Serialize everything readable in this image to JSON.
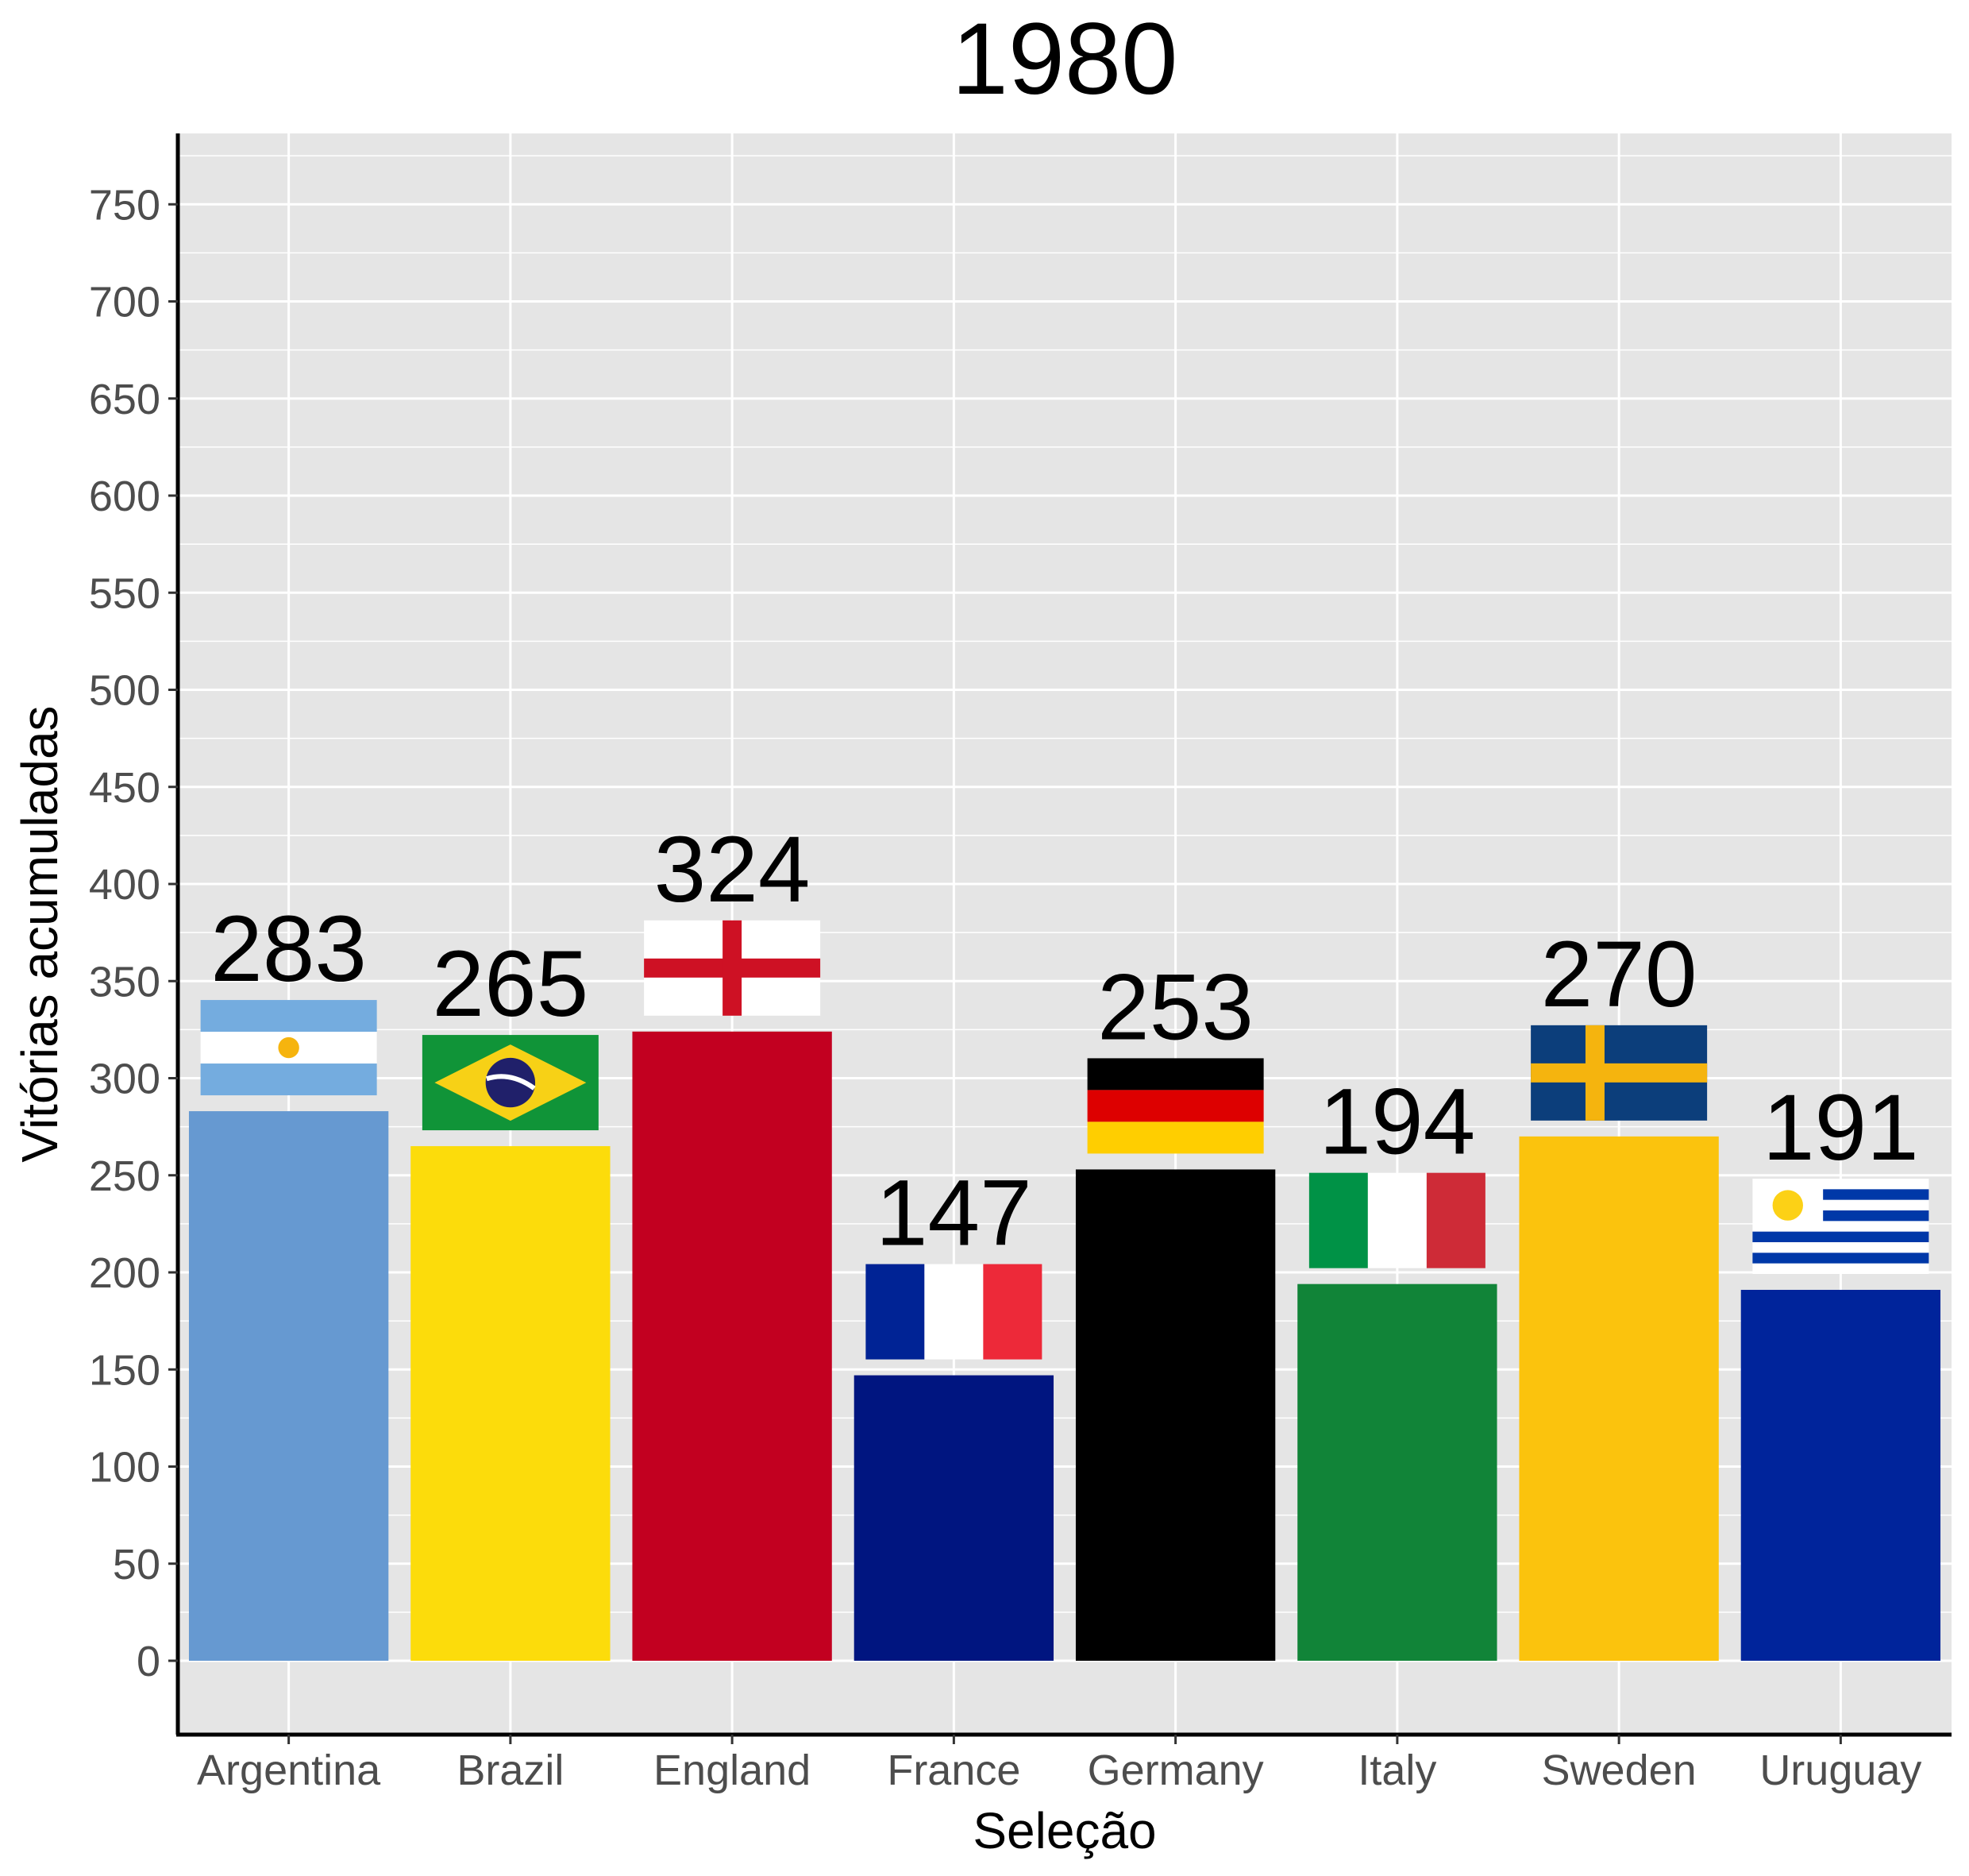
{
  "chart_data": {
    "type": "bar",
    "title": "1980",
    "xlabel": "Seleção",
    "ylabel": "Vitórias acumuladas",
    "ylim": [
      -40,
      785
    ],
    "y_ticks": [
      0,
      50,
      100,
      150,
      200,
      250,
      300,
      350,
      400,
      450,
      500,
      550,
      600,
      650,
      700,
      750
    ],
    "grid": true,
    "legend": "none",
    "categories": [
      "Argentina",
      "Brazil",
      "England",
      "France",
      "Germany",
      "Italy",
      "Sweden",
      "Uruguay"
    ],
    "values": [
      283,
      265,
      324,
      147,
      253,
      194,
      270,
      191
    ],
    "bar_colors": [
      "#6699d1",
      "#fcdc0b",
      "#c20020",
      "#001580",
      "#000000",
      "#118438",
      "#fbc30d",
      "#00249b"
    ],
    "bar_labels": [
      "283",
      "265",
      "324",
      "147",
      "253",
      "194",
      "270",
      "191"
    ],
    "bar_icons": [
      "argentina-flag-icon",
      "brazil-flag-icon",
      "england-flag-icon",
      "france-flag-icon",
      "germany-flag-icon",
      "italy-flag-icon",
      "sweden-flag-icon",
      "uruguay-flag-icon"
    ]
  }
}
